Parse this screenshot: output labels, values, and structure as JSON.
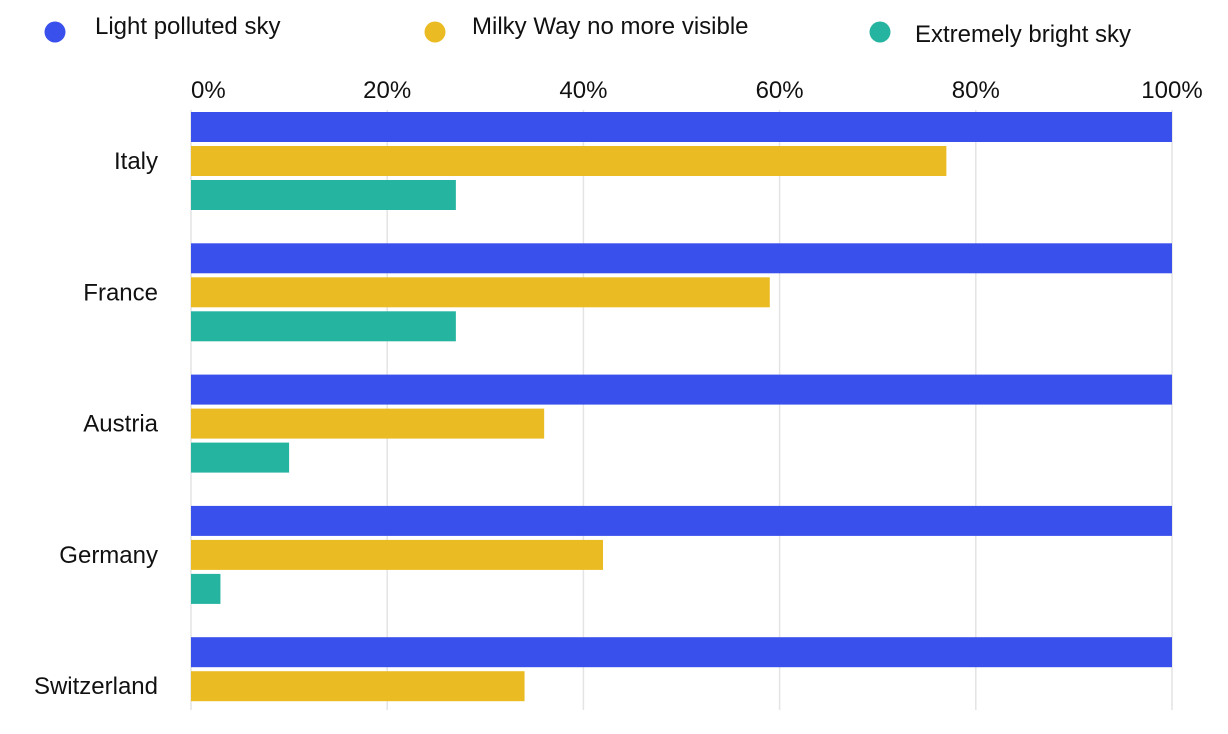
{
  "chart_data": {
    "type": "bar",
    "orientation": "horizontal",
    "categories": [
      "Italy",
      "France",
      "Austria",
      "Germany",
      "Switzerland"
    ],
    "series": [
      {
        "name": "Light polluted sky",
        "color": "#3a50ec",
        "values": [
          100,
          100,
          100,
          100,
          100
        ]
      },
      {
        "name": "Milky Way no more visible",
        "color": "#ebbb24",
        "values": [
          77,
          59,
          36,
          42,
          34
        ]
      },
      {
        "name": "Extremely bright sky",
        "color": "#25b4a0",
        "values": [
          27,
          27,
          10,
          3,
          0
        ]
      }
    ],
    "xlim": [
      0,
      100
    ],
    "x_ticks": [
      0,
      20,
      40,
      60,
      80,
      100
    ],
    "x_tick_labels": [
      "0%",
      "20%",
      "40%",
      "60%",
      "80%",
      "100%"
    ],
    "x_axis_position": "top",
    "grid": true,
    "legend_position": "top",
    "title": "",
    "xlabel": "",
    "ylabel": ""
  }
}
